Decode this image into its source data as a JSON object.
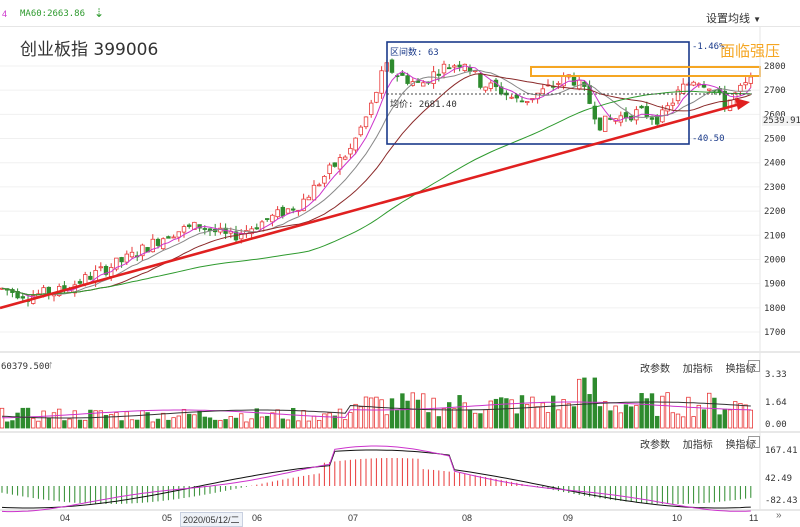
{
  "header": {
    "ma_prefix": "4",
    "ma_label": "MA60:2663.86",
    "settings_label": "设置均线"
  },
  "chart": {
    "title": "创业板指 399006",
    "annotation_resistance": "面临强压",
    "box_start_label": "区间数: 63",
    "box_avg_label": "均价: 2681.40",
    "box_high_label": "-1.46%",
    "box_low_label": "-40.50",
    "current_price_label": "2539.91"
  },
  "volume_panel": {
    "left_label": "60379.500",
    "buttons": [
      "改参数",
      "加指标",
      "换指标"
    ],
    "close_icon": "close-icon"
  },
  "macd_panel": {
    "buttons": [
      "改参数",
      "加指标",
      "换指标"
    ],
    "close_icon": "close-icon"
  },
  "x_axis": {
    "labels": [
      "04",
      "05",
      "2020/05/12/二",
      "06",
      "07",
      "08",
      "09",
      "10",
      "11"
    ]
  },
  "colors": {
    "up": "#e83a3a",
    "down": "#2e8b2e",
    "box": "#1a3a8a",
    "resistance": "#f5a623",
    "trend": "#e02020",
    "ma5": "#cc33cc",
    "ma10": "#888888",
    "ma20": "#8b2a2a",
    "ma60": "#2e9a2e"
  },
  "chart_data": {
    "type": "candlestick",
    "price_axis": {
      "ticks": [
        1700,
        1800,
        1900,
        2000,
        2100,
        2200,
        2300,
        2400,
        2500,
        2600,
        2700,
        2800
      ],
      "range": [
        1620,
        2900
      ]
    },
    "volume_axis": {
      "ticks": [
        "3.33",
        "1.64",
        "0.00"
      ]
    },
    "macd_axis": {
      "ticks": [
        "167.41",
        "42.49",
        "-82.43"
      ]
    },
    "months": [
      "04",
      "05",
      "06",
      "07",
      "08",
      "09",
      "10",
      "11"
    ]
  }
}
